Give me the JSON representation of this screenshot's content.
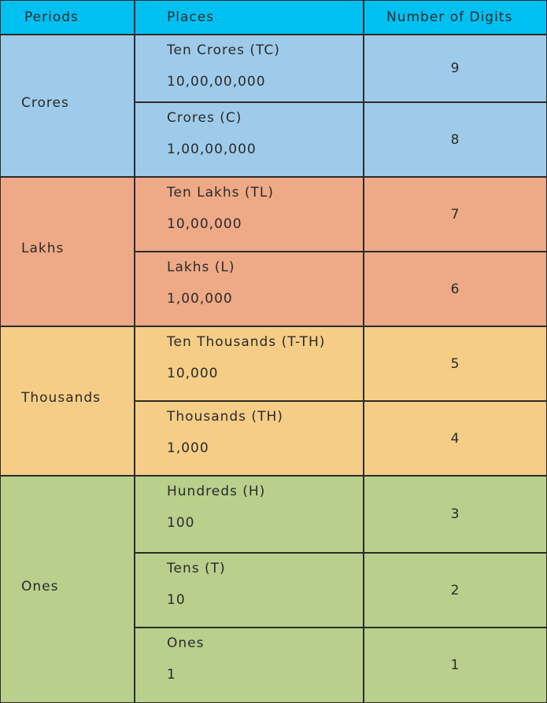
{
  "table": {
    "header": [
      "Periods",
      "Places",
      "Number of Digits"
    ],
    "groups": [
      {
        "period": "Crores",
        "places": [
          {
            "name": "Ten Crores (TC)",
            "value": "10,00,00,000",
            "digits": 9
          },
          {
            "name": "Crores (C)",
            "value": "1,00,00,000",
            "digits": 8
          }
        ]
      },
      {
        "period": "Lakhs",
        "places": [
          {
            "name": "Ten Lakhs (TL)",
            "value": "10,00,000",
            "digits": 7
          },
          {
            "name": "Lakhs (L)",
            "value": "1,00,000",
            "digits": 6
          }
        ]
      },
      {
        "period": "Thousands",
        "places": [
          {
            "name": "Ten Thousands (T-TH)",
            "value": "10,000",
            "digits": 5
          },
          {
            "name": "Thousands (TH)",
            "value": "1,000",
            "digits": 4
          }
        ]
      },
      {
        "period": "Ones",
        "places": [
          {
            "name": "Hundreds (H)",
            "value": "100",
            "digits": 3
          },
          {
            "name": "Tens (T)",
            "value": "10",
            "digits": 2
          },
          {
            "name": "Ones",
            "value": "1",
            "digits": 1
          }
        ]
      }
    ]
  }
}
